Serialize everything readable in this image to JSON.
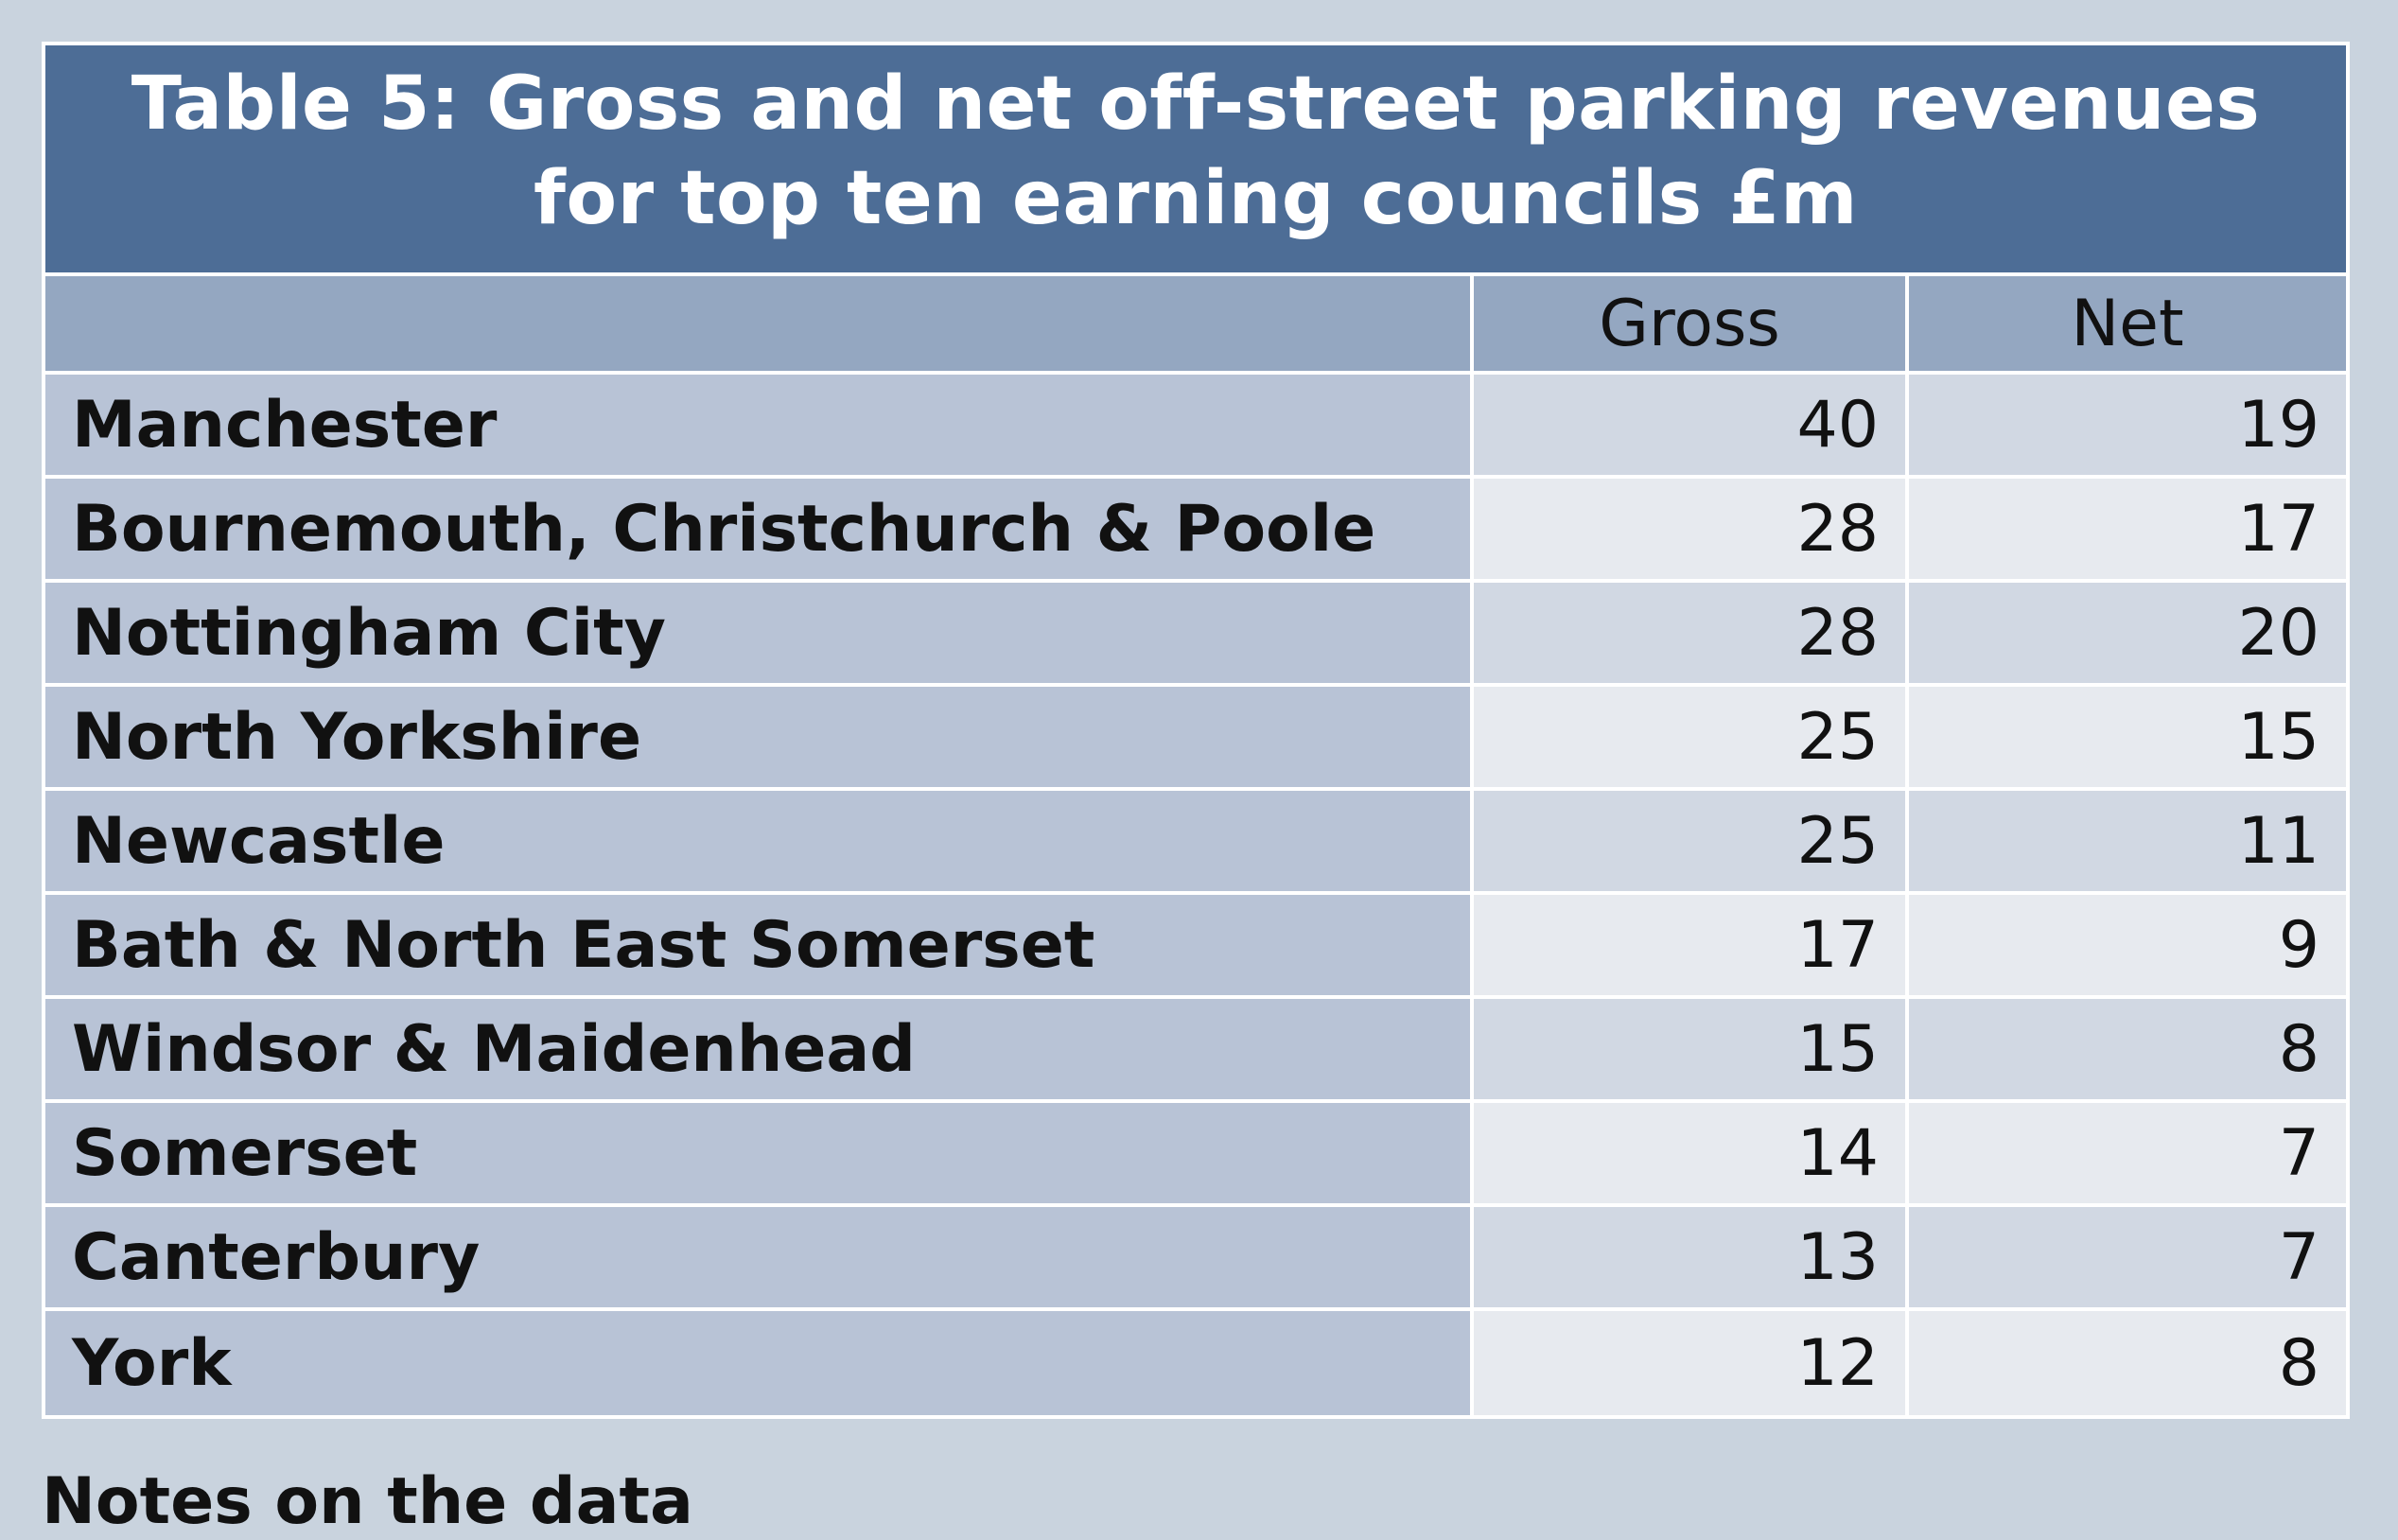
{
  "title": {
    "line1": "Table 5: Gross and net off-street parking revenues",
    "line2": "for top ten earning councils £m"
  },
  "columns": [
    "",
    "Gross",
    "Net"
  ],
  "rows": [
    {
      "council": "Manchester",
      "gross": "40",
      "net": "19"
    },
    {
      "council": "Bournemouth, Christchurch & Poole",
      "gross": "28",
      "net": "17"
    },
    {
      "council": "Nottingham City",
      "gross": "28",
      "net": "20"
    },
    {
      "council": "North Yorkshire",
      "gross": "25",
      "net": "15"
    },
    {
      "council": "Newcastle",
      "gross": "25",
      "net": "11"
    },
    {
      "council": "Bath & North East Somerset",
      "gross": "17",
      "net": "9"
    },
    {
      "council": "Windsor & Maidenhead",
      "gross": "15",
      "net": "8"
    },
    {
      "council": "Somerset",
      "gross": "14",
      "net": "7"
    },
    {
      "council": "Canterbury",
      "gross": "13",
      "net": "7"
    },
    {
      "council": "York",
      "gross": "12",
      "net": "8"
    }
  ],
  "footer_note": "Notes on the data",
  "colors": {
    "page_background": "#c9d3de",
    "title_background": "#4d6d96",
    "header_background": "#94a7c1",
    "name_cell_background": "#b8c3d6",
    "value_cell_odd": "#d1d8e3",
    "value_cell_even": "#e7eaef"
  }
}
